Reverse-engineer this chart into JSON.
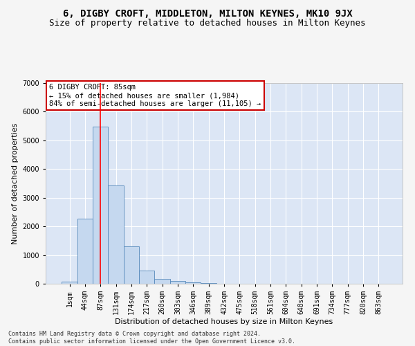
{
  "title": "6, DIGBY CROFT, MIDDLETON, MILTON KEYNES, MK10 9JX",
  "subtitle": "Size of property relative to detached houses in Milton Keynes",
  "xlabel": "Distribution of detached houses by size in Milton Keynes",
  "ylabel": "Number of detached properties",
  "footnote": "Contains HM Land Registry data © Crown copyright and database right 2024.\nContains public sector information licensed under the Open Government Licence v3.0.",
  "categories": [
    "1sqm",
    "44sqm",
    "87sqm",
    "131sqm",
    "174sqm",
    "217sqm",
    "260sqm",
    "303sqm",
    "346sqm",
    "389sqm",
    "432sqm",
    "475sqm",
    "518sqm",
    "561sqm",
    "604sqm",
    "648sqm",
    "691sqm",
    "734sqm",
    "777sqm",
    "820sqm",
    "863sqm"
  ],
  "values": [
    75,
    2280,
    5480,
    3430,
    1310,
    470,
    165,
    90,
    55,
    35,
    0,
    0,
    0,
    0,
    0,
    0,
    0,
    0,
    0,
    0,
    0
  ],
  "bar_color": "#c5d8ef",
  "bar_edge_color": "#5588bb",
  "red_line_x": 2,
  "annotation_text": "6 DIGBY CROFT: 85sqm\n← 15% of detached houses are smaller (1,984)\n84% of semi-detached houses are larger (11,105) →",
  "annotation_box_color": "#ffffff",
  "annotation_box_edge": "#cc0000",
  "ylim": [
    0,
    7000
  ],
  "yticks": [
    0,
    1000,
    2000,
    3000,
    4000,
    5000,
    6000,
    7000
  ],
  "background_color": "#dce6f5",
  "grid_color": "#ffffff",
  "fig_background": "#f5f5f5",
  "title_fontsize": 10,
  "subtitle_fontsize": 9,
  "axis_label_fontsize": 8,
  "tick_fontsize": 7,
  "annotation_fontsize": 7.5
}
